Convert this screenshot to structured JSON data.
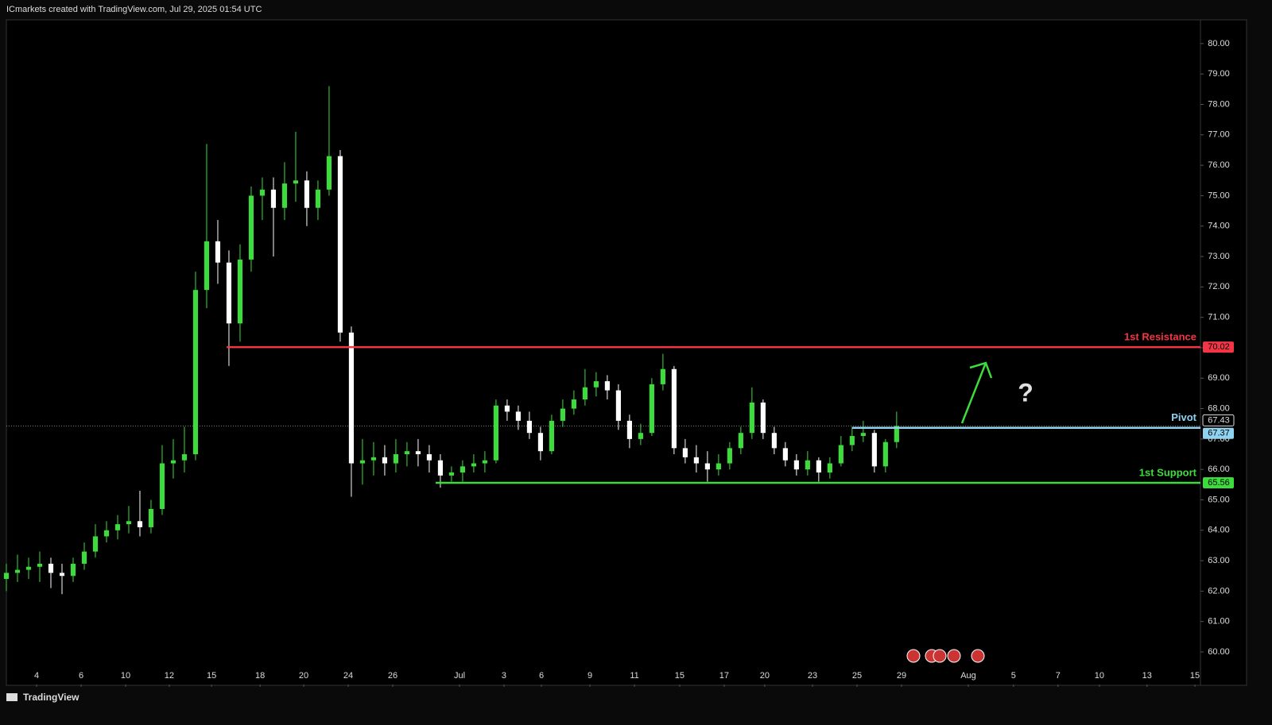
{
  "header": {
    "text": "ICmarkets created with TradingView.com, Jul 29, 2025 01:54 UTC"
  },
  "footer": {
    "brand": "TradingView"
  },
  "chart_data": {
    "type": "candlestick",
    "up_color": "#3ddc3d",
    "down_color": "#ffffff",
    "ylim": [
      58.93,
      80.78
    ],
    "yticks": [
      {
        "value": 60,
        "label": "60.00"
      },
      {
        "value": 61,
        "label": "61.00"
      },
      {
        "value": 62,
        "label": "62.00"
      },
      {
        "value": 63,
        "label": "63.00"
      },
      {
        "value": 64,
        "label": "64.00"
      },
      {
        "value": 65,
        "label": "65.00"
      },
      {
        "value": 66,
        "label": "66.00"
      },
      {
        "value": 67,
        "label": "67.00"
      },
      {
        "value": 68,
        "label": "68.00"
      },
      {
        "value": 69,
        "label": "69.00"
      },
      {
        "value": 70,
        "label": "70.00"
      },
      {
        "value": 71,
        "label": "71.00"
      },
      {
        "value": 72,
        "label": "72.00"
      },
      {
        "value": 73,
        "label": "73.00"
      },
      {
        "value": 74,
        "label": "74.00"
      },
      {
        "value": 75,
        "label": "75.00"
      },
      {
        "value": 76,
        "label": "76.00"
      },
      {
        "value": 77,
        "label": "77.00"
      },
      {
        "value": 78,
        "label": "78.00"
      },
      {
        "value": 79,
        "label": "79.00"
      },
      {
        "value": 80,
        "label": "80.00"
      }
    ],
    "xlim": [
      -1.36,
      52.29
    ],
    "xticks": [
      {
        "value": 0,
        "label": "4"
      },
      {
        "value": 2,
        "label": "6"
      },
      {
        "value": 4,
        "label": "10"
      },
      {
        "value": 5.96,
        "label": "12"
      },
      {
        "value": 7.86,
        "label": "15"
      },
      {
        "value": 10.04,
        "label": "18"
      },
      {
        "value": 12,
        "label": "20"
      },
      {
        "value": 14,
        "label": "24"
      },
      {
        "value": 16,
        "label": "26"
      },
      {
        "value": 19,
        "label": "Jul"
      },
      {
        "value": 21,
        "label": "3"
      },
      {
        "value": 22.68,
        "label": "6"
      },
      {
        "value": 24.86,
        "label": "9"
      },
      {
        "value": 26.86,
        "label": "11"
      },
      {
        "value": 28.89,
        "label": "15"
      },
      {
        "value": 30.89,
        "label": "17"
      },
      {
        "value": 32.71,
        "label": "20"
      },
      {
        "value": 34.86,
        "label": "23"
      },
      {
        "value": 36.86,
        "label": "25"
      },
      {
        "value": 38.86,
        "label": "29"
      },
      {
        "value": 41.86,
        "label": "Aug"
      },
      {
        "value": 43.89,
        "label": "5"
      },
      {
        "value": 45.89,
        "label": "7"
      },
      {
        "value": 47.75,
        "label": "10"
      },
      {
        "value": 49.89,
        "label": "13"
      },
      {
        "value": 52.04,
        "label": "15"
      }
    ],
    "x": [
      -1.36,
      -0.86,
      -0.36,
      0.14,
      0.64,
      1.14,
      1.64,
      2.14,
      2.64,
      3.14,
      3.64,
      4.14,
      4.64,
      5.14,
      5.64,
      6.14,
      6.64,
      7.14,
      7.64,
      8.14,
      8.64,
      9.14,
      9.64,
      10.14,
      10.64,
      11.14,
      11.64,
      12.14,
      12.64,
      13.14,
      13.64,
      14.14,
      14.64,
      15.14,
      15.64,
      16.14,
      16.64,
      17.14,
      17.64,
      18.14,
      18.64,
      19.14,
      19.64,
      20.14,
      20.64,
      21.14,
      21.64,
      22.14,
      22.64,
      23.14,
      23.64,
      24.14,
      24.64,
      25.14,
      25.64,
      26.14,
      26.64,
      27.14,
      27.64,
      28.14,
      28.64,
      29.14,
      29.64,
      30.14,
      30.64,
      31.14,
      31.64,
      32.14,
      32.64,
      33.14,
      33.64,
      34.14,
      34.64,
      35.14,
      35.64,
      36.14,
      36.64,
      37.14,
      37.64,
      38.14,
      38.64
    ],
    "ohlc": [
      [
        62.4,
        62.9,
        62.0,
        62.6
      ],
      [
        62.6,
        63.2,
        62.3,
        62.7
      ],
      [
        62.7,
        63.1,
        62.4,
        62.8
      ],
      [
        62.8,
        63.3,
        62.3,
        62.9
      ],
      [
        62.9,
        63.1,
        62.1,
        62.6
      ],
      [
        62.6,
        62.9,
        61.9,
        62.5
      ],
      [
        62.5,
        63.1,
        62.3,
        62.9
      ],
      [
        62.9,
        63.6,
        62.7,
        63.3
      ],
      [
        63.3,
        64.2,
        63.1,
        63.8
      ],
      [
        63.8,
        64.3,
        63.6,
        64.0
      ],
      [
        64.0,
        64.5,
        63.7,
        64.2
      ],
      [
        64.2,
        64.8,
        63.9,
        64.3
      ],
      [
        64.3,
        65.3,
        63.8,
        64.1
      ],
      [
        64.1,
        65.0,
        63.9,
        64.7
      ],
      [
        64.7,
        66.8,
        64.5,
        66.2
      ],
      [
        66.2,
        67.0,
        65.7,
        66.3
      ],
      [
        66.3,
        67.4,
        65.9,
        66.5
      ],
      [
        66.5,
        72.5,
        66.3,
        71.9
      ],
      [
        71.9,
        76.7,
        71.3,
        73.5
      ],
      [
        73.5,
        74.2,
        72.1,
        72.8
      ],
      [
        72.8,
        73.2,
        69.4,
        70.8
      ],
      [
        70.8,
        73.4,
        70.2,
        72.9
      ],
      [
        72.9,
        75.3,
        72.5,
        75.0
      ],
      [
        75.0,
        75.6,
        74.2,
        75.2
      ],
      [
        75.2,
        75.6,
        73.0,
        74.6
      ],
      [
        74.6,
        76.1,
        74.2,
        75.4
      ],
      [
        75.4,
        77.1,
        74.8,
        75.5
      ],
      [
        75.5,
        75.8,
        74.0,
        74.6
      ],
      [
        74.6,
        75.5,
        74.2,
        75.2
      ],
      [
        75.2,
        78.6,
        75.0,
        76.3
      ],
      [
        76.3,
        76.5,
        70.2,
        70.5
      ],
      [
        70.5,
        70.7,
        65.1,
        66.2
      ],
      [
        66.2,
        67.0,
        65.5,
        66.3
      ],
      [
        66.3,
        66.9,
        65.8,
        66.4
      ],
      [
        66.4,
        66.8,
        65.8,
        66.2
      ],
      [
        66.2,
        67.0,
        65.9,
        66.5
      ],
      [
        66.5,
        66.9,
        66.1,
        66.6
      ],
      [
        66.6,
        67.0,
        66.1,
        66.5
      ],
      [
        66.5,
        66.8,
        65.9,
        66.3
      ],
      [
        66.3,
        66.5,
        65.4,
        65.8
      ],
      [
        65.8,
        66.1,
        65.6,
        65.9
      ],
      [
        65.9,
        66.3,
        65.6,
        66.1
      ],
      [
        66.1,
        66.5,
        65.9,
        66.2
      ],
      [
        66.2,
        66.6,
        65.9,
        66.3
      ],
      [
        66.3,
        68.3,
        66.2,
        68.1
      ],
      [
        68.1,
        68.3,
        67.6,
        67.9
      ],
      [
        67.9,
        68.1,
        67.3,
        67.6
      ],
      [
        67.6,
        67.9,
        67.0,
        67.2
      ],
      [
        67.2,
        67.4,
        66.3,
        66.6
      ],
      [
        66.6,
        67.8,
        66.5,
        67.6
      ],
      [
        67.6,
        68.3,
        67.4,
        68.0
      ],
      [
        68.0,
        68.6,
        67.8,
        68.3
      ],
      [
        68.3,
        69.3,
        68.1,
        68.7
      ],
      [
        68.7,
        69.2,
        68.4,
        68.9
      ],
      [
        68.9,
        69.1,
        68.3,
        68.6
      ],
      [
        68.6,
        68.8,
        67.3,
        67.6
      ],
      [
        67.6,
        67.8,
        66.7,
        67.0
      ],
      [
        67.0,
        67.5,
        66.8,
        67.2
      ],
      [
        67.2,
        69.0,
        67.1,
        68.8
      ],
      [
        68.8,
        69.8,
        68.6,
        69.3
      ],
      [
        69.3,
        69.4,
        66.5,
        66.7
      ],
      [
        66.7,
        67.0,
        66.2,
        66.4
      ],
      [
        66.4,
        66.8,
        65.9,
        66.2
      ],
      [
        66.2,
        66.6,
        65.6,
        66.0
      ],
      [
        66.0,
        66.5,
        65.8,
        66.2
      ],
      [
        66.2,
        66.9,
        66.0,
        66.7
      ],
      [
        66.7,
        67.4,
        66.5,
        67.2
      ],
      [
        67.2,
        68.7,
        67.0,
        68.2
      ],
      [
        68.2,
        68.3,
        67.0,
        67.2
      ],
      [
        67.2,
        67.4,
        66.5,
        66.7
      ],
      [
        66.7,
        66.9,
        66.1,
        66.3
      ],
      [
        66.3,
        66.5,
        65.8,
        66.0
      ],
      [
        66.0,
        66.6,
        65.8,
        66.3
      ],
      [
        66.3,
        66.4,
        65.6,
        65.9
      ],
      [
        65.9,
        66.4,
        65.7,
        66.2
      ],
      [
        66.2,
        67.1,
        66.1,
        66.8
      ],
      [
        66.8,
        67.4,
        66.6,
        67.1
      ],
      [
        67.1,
        67.6,
        66.9,
        67.2
      ],
      [
        67.2,
        67.3,
        65.9,
        66.1
      ],
      [
        66.1,
        67.0,
        65.9,
        66.9
      ],
      [
        66.9,
        67.9,
        66.7,
        67.43
      ]
    ],
    "current_price": 67.43,
    "levels": [
      {
        "label": "1st Resistance",
        "value": 70.02,
        "color": "#f23645",
        "from_x": 8.54
      },
      {
        "label": "Pivot",
        "value": 67.37,
        "color": "#8fd3f0",
        "from_x": 36.64
      },
      {
        "label": "1st Support",
        "value": 65.56,
        "color": "#3ddc3d",
        "from_x": 17.93
      }
    ],
    "annotation": "?"
  }
}
